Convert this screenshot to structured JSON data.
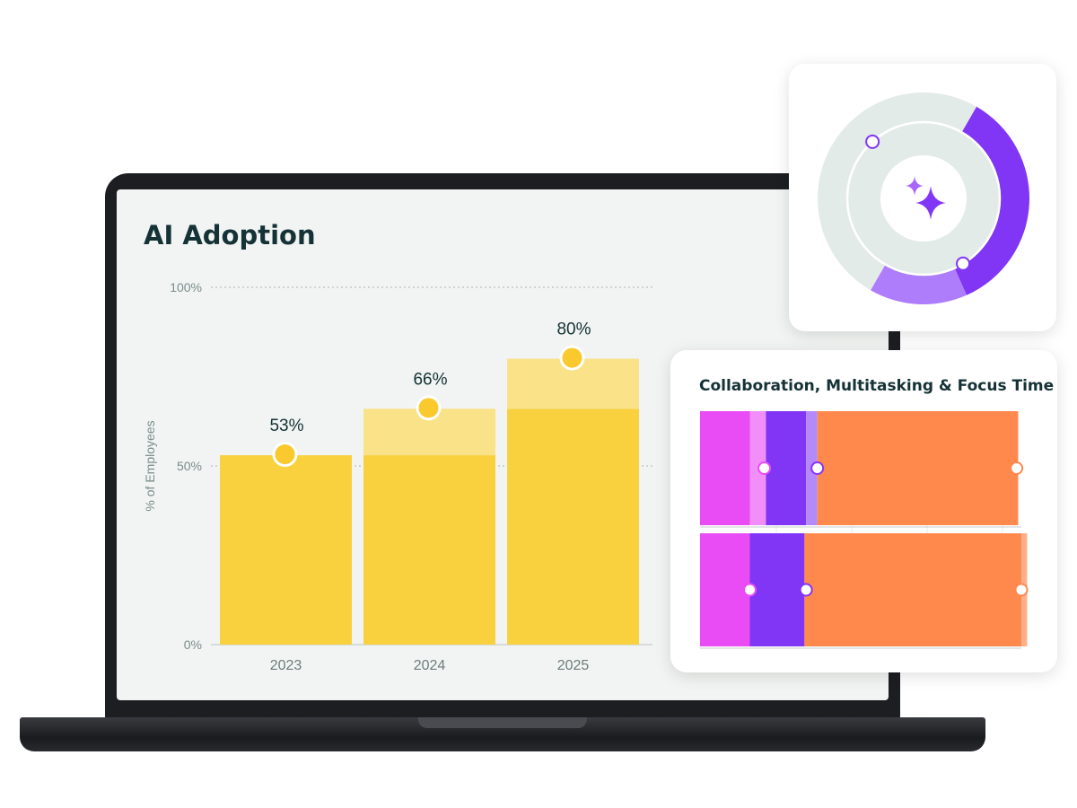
{
  "adoption_chart": {
    "title": "AI Adoption",
    "ylabel": "% of Employees"
  },
  "chart_data": [
    {
      "type": "bar",
      "title": "AI Adoption",
      "xlabel": "",
      "ylabel": "% of Employees",
      "ylim": [
        0,
        100
      ],
      "yticks": [
        "0%",
        "50%",
        "100%"
      ],
      "ytick_values": [
        0,
        50,
        100
      ],
      "categories": [
        "2023",
        "2024",
        "2025"
      ],
      "values": [
        53,
        66,
        80
      ],
      "value_labels": [
        "53%",
        "66%",
        "80%"
      ],
      "previous_values": [
        0,
        53,
        66
      ],
      "grid": true,
      "colors": {
        "bar": "#f9d13e",
        "increase": "#f9e287",
        "marker": "#f9c92e"
      }
    },
    {
      "type": "pie",
      "segments": [
        {
          "value": 35,
          "color": "#8236f5"
        },
        {
          "value": 15,
          "color": "#ae7dfb"
        },
        {
          "value": 50,
          "color": "#e3ebe8"
        }
      ],
      "markers": [
        0.33,
        0.8
      ]
    },
    {
      "type": "bar",
      "title": "Collaboration, Multitasking & Focus Time",
      "orientation": "horizontal-stacked",
      "series": [
        {
          "values": [
            15.5,
            15.5
          ],
          "color": "#e94bf4"
        },
        {
          "values": [
            5,
            0
          ],
          "color": "#f28ef7"
        },
        {
          "values": [
            12.5,
            17
          ],
          "color": "#8236f5"
        },
        {
          "values": [
            3.5,
            0
          ],
          "color": "#b48afa"
        },
        {
          "values": [
            62.5,
            67.5
          ],
          "color": "#ff884d"
        },
        {
          "values": [
            0,
            1.8
          ],
          "color": "#ffb08a"
        }
      ],
      "markers": [
        [
          20,
          36.5,
          98.5
        ],
        [
          15.5,
          33,
          100
        ]
      ]
    }
  ]
}
